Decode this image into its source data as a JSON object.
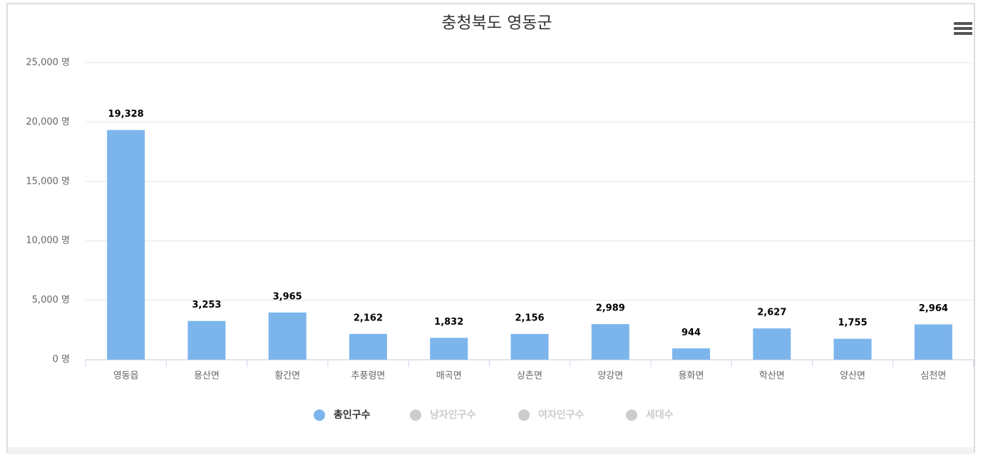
{
  "chart_data": {
    "type": "bar",
    "title": "충청북도 영동군",
    "categories": [
      "영동읍",
      "용산면",
      "황간면",
      "추풍령면",
      "매곡면",
      "상촌면",
      "양강면",
      "용화면",
      "학산면",
      "양산면",
      "심천면"
    ],
    "series": [
      {
        "name": "총인구수",
        "color": "#7cb5ec",
        "visible": true,
        "values": [
          19328,
          3253,
          3965,
          2162,
          1832,
          2156,
          2989,
          944,
          2627,
          1755,
          2964
        ],
        "value_labels": [
          "19,328",
          "3,253",
          "3,965",
          "2,162",
          "1,832",
          "2,156",
          "2,989",
          "944",
          "2,627",
          "1,755",
          "2,964"
        ]
      },
      {
        "name": "남자인구수",
        "color": "#cccccc",
        "visible": false
      },
      {
        "name": "여자인구수",
        "color": "#cccccc",
        "visible": false
      },
      {
        "name": "세대수",
        "color": "#cccccc",
        "visible": false
      }
    ],
    "ylim": [
      0,
      25000
    ],
    "yticks": [
      {
        "value": 0,
        "label": "0 명"
      },
      {
        "value": 5000,
        "label": "5,000 명"
      },
      {
        "value": 10000,
        "label": "10,000 명"
      },
      {
        "value": 15000,
        "label": "15,000 명"
      },
      {
        "value": 20000,
        "label": "20,000 명"
      },
      {
        "value": 25000,
        "label": "25,000 명"
      }
    ],
    "grid": true
  }
}
